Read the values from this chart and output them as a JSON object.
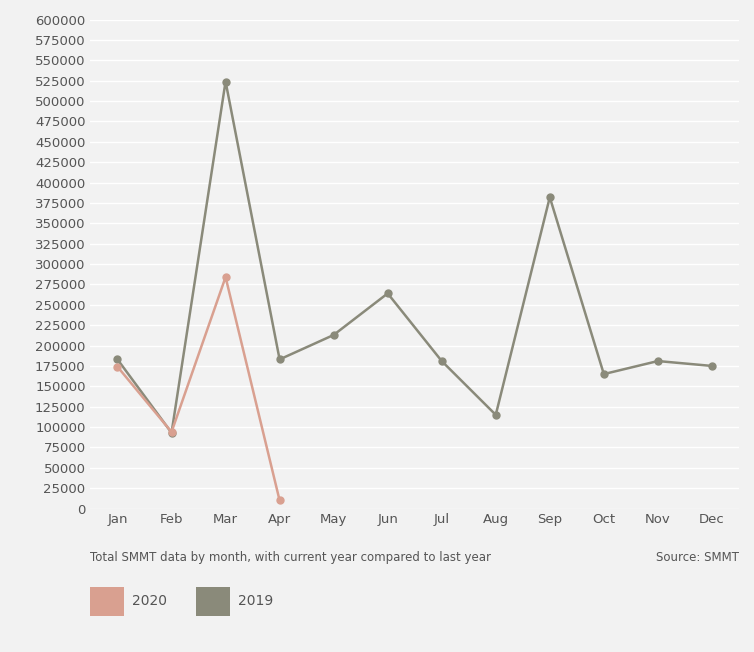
{
  "months": [
    "Jan",
    "Feb",
    "Mar",
    "Apr",
    "May",
    "Jun",
    "Jul",
    "Aug",
    "Sep",
    "Oct",
    "Nov",
    "Dec"
  ],
  "data_2020": [
    174000,
    94000,
    284000,
    10000,
    null,
    null,
    null,
    null,
    null,
    null,
    null,
    null
  ],
  "data_2019": [
    183000,
    93000,
    524000,
    183000,
    213000,
    264000,
    181000,
    115000,
    382000,
    165000,
    181000,
    175000
  ],
  "color_2020": "#d9a090",
  "color_2019": "#8a8a7a",
  "ylim": [
    0,
    600000
  ],
  "xlabel_note": "Total SMMT data by month, with current year compared to last year",
  "source": "Source: SMMT",
  "legend_2020": "2020",
  "legend_2019": "2019",
  "background_color": "#f2f2f2",
  "grid_color": "#ffffff",
  "marker_size": 5,
  "line_width": 1.8
}
